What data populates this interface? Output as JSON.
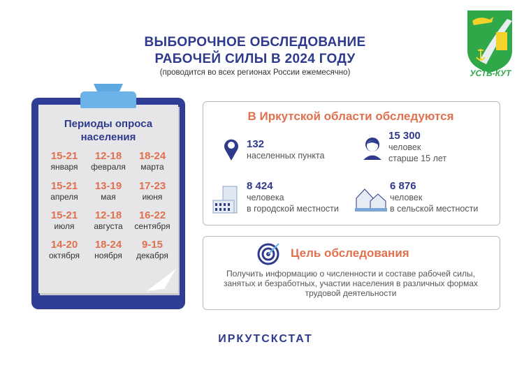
{
  "header": {
    "title_line1": "ВЫБОРОЧНОЕ ОБСЛЕДОВАНИЕ",
    "title_line2": "РАБОЧЕЙ СИЛЫ В 2024 ГОДУ",
    "subtitle": "(проводится во всех регионах России ежемесячно)"
  },
  "logo": {
    "text": "УСТЬ-КУТ",
    "icon": "coat-of-arms"
  },
  "periods": {
    "heading": "Периоды опроса населения",
    "items": [
      {
        "dates": "15-21",
        "month": "января"
      },
      {
        "dates": "12-18",
        "month": "февраля"
      },
      {
        "dates": "18-24",
        "month": "марта"
      },
      {
        "dates": "15-21",
        "month": "апреля"
      },
      {
        "dates": "13-19",
        "month": "мая"
      },
      {
        "dates": "17-23",
        "month": "июня"
      },
      {
        "dates": "15-21",
        "month": "июля"
      },
      {
        "dates": "12-18",
        "month": "августа"
      },
      {
        "dates": "16-22",
        "month": "сентября"
      },
      {
        "dates": "14-20",
        "month": "октября"
      },
      {
        "dates": "18-24",
        "month": "ноября"
      },
      {
        "dates": "9-15",
        "month": "декабря"
      }
    ]
  },
  "survey": {
    "heading": "В Иркутской области обследуются",
    "stats": [
      {
        "value": "132",
        "line1": "населенных пункта",
        "line2": "",
        "icon": "location-pin"
      },
      {
        "value": "15 300",
        "line1": "человек",
        "line2": "старше 15 лет",
        "icon": "person"
      },
      {
        "value": "8 424",
        "line1": "человека",
        "line2": "в городской местности",
        "icon": "city-buildings"
      },
      {
        "value": "6 876",
        "line1": "человек",
        "line2": "в сельской местности",
        "icon": "houses"
      }
    ]
  },
  "goal": {
    "heading": "Цель обследования",
    "text": "Получить информацию о численности и составе рабочей силы, занятых и безработных, участии населения в различных формах трудовой деятельности"
  },
  "footer": {
    "org": "ИРКУТСКСТАТ"
  },
  "colors": {
    "navy": "#2e3a8c",
    "orange": "#e0714f",
    "clip_blue": "#2f3d97",
    "tab_blue": "#6cb3ea"
  }
}
